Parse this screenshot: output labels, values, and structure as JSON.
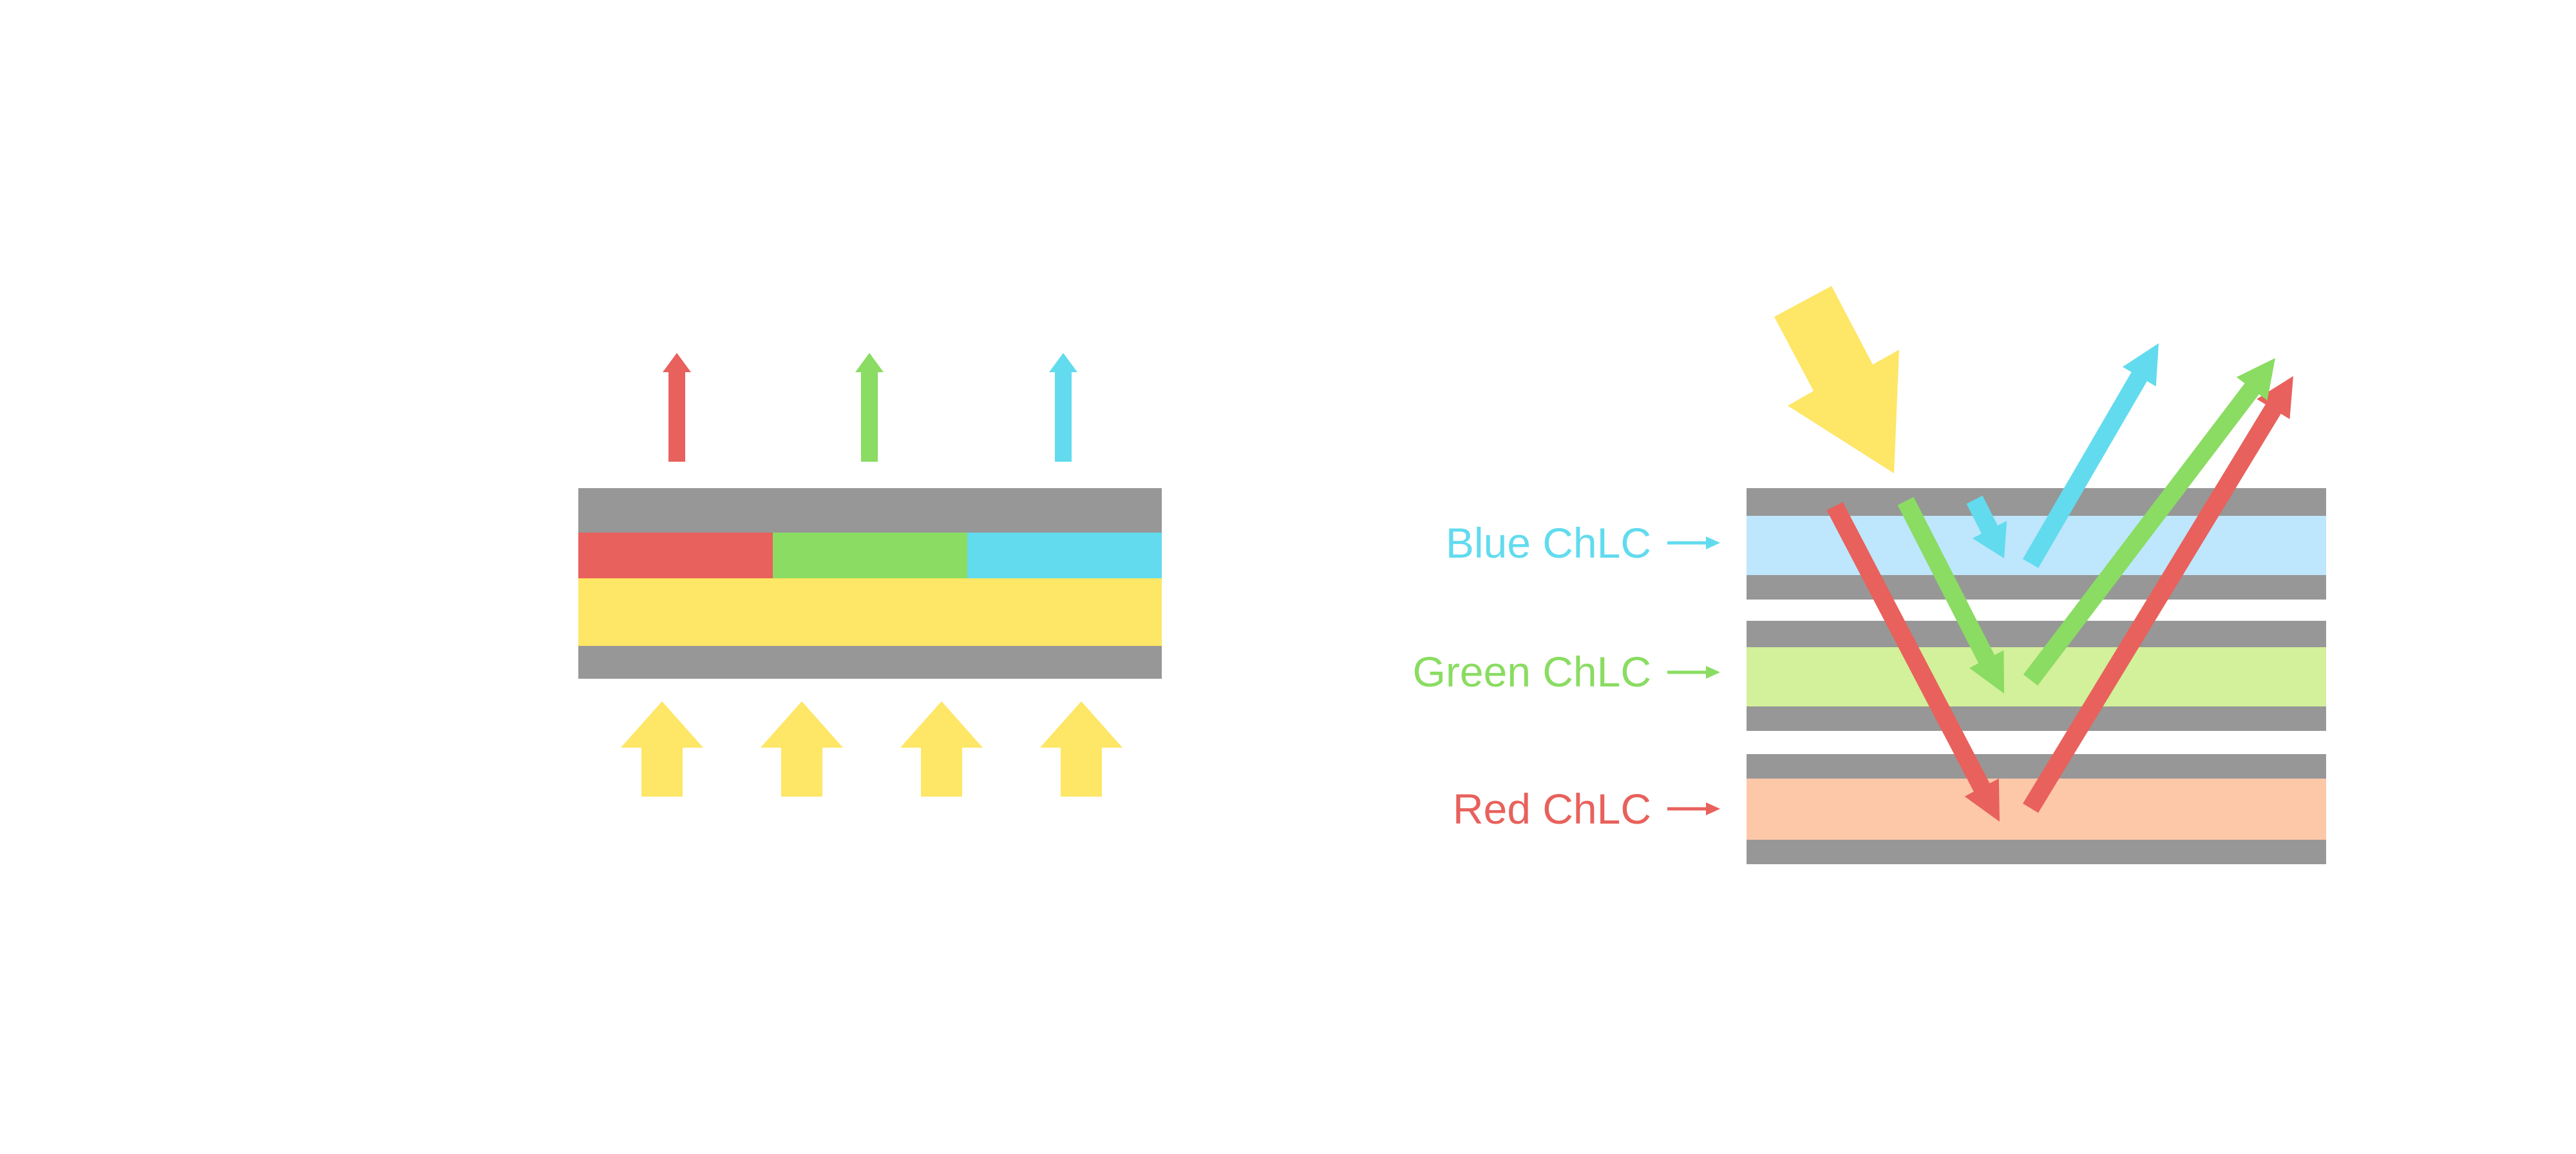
{
  "colors": {
    "red": "#E8615C",
    "green": "#8ADC62",
    "cyan": "#62DBEE",
    "yellow": "#FEE666",
    "gray": "#979797",
    "blue_layer": "#BEE6FD",
    "green_layer": "#D3F09A",
    "red_layer": "#FDC8A8"
  },
  "right_diagram": {
    "labels": [
      {
        "text": "Blue ChLC",
        "color": "#62DBEE"
      },
      {
        "text": "Green ChLC",
        "color": "#8ADC62"
      },
      {
        "text": "Red ChLC",
        "color": "#E8615C"
      }
    ]
  }
}
